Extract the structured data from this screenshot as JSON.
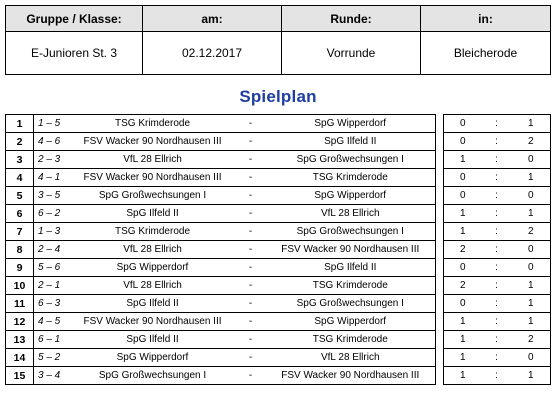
{
  "header": {
    "labels": {
      "group": "Gruppe / Klasse:",
      "date": "am:",
      "round": "Runde:",
      "place": "in:"
    },
    "values": {
      "group": "E-Junioren St. 3",
      "date": "02.12.2017",
      "round": "Vorrunde",
      "place": "Bleicherode"
    }
  },
  "title": "Spielplan",
  "separator": "-",
  "score_separator": ":",
  "matches": [
    {
      "nr": "1",
      "pair": "1 – 5",
      "home": "TSG Krimderode",
      "away": "SpG Wipperdorf",
      "score_home": "0",
      "score_away": "1"
    },
    {
      "nr": "2",
      "pair": "4 – 6",
      "home": "FSV Wacker 90 Nordhausen III",
      "away": "SpG Ilfeld II",
      "score_home": "0",
      "score_away": "2"
    },
    {
      "nr": "3",
      "pair": "2 – 3",
      "home": "VfL 28 Ellrich",
      "away": "SpG Großwechsungen I",
      "score_home": "1",
      "score_away": "0"
    },
    {
      "nr": "4",
      "pair": "4 – 1",
      "home": "FSV Wacker 90 Nordhausen III",
      "away": "TSG Krimderode",
      "score_home": "0",
      "score_away": "1"
    },
    {
      "nr": "5",
      "pair": "3 – 5",
      "home": "SpG Großwechsungen I",
      "away": "SpG Wipperdorf",
      "score_home": "0",
      "score_away": "0"
    },
    {
      "nr": "6",
      "pair": "6 – 2",
      "home": "SpG Ilfeld II",
      "away": "VfL 28 Ellrich",
      "score_home": "1",
      "score_away": "1"
    },
    {
      "nr": "7",
      "pair": "1 – 3",
      "home": "TSG Krimderode",
      "away": "SpG Großwechsungen I",
      "score_home": "1",
      "score_away": "2"
    },
    {
      "nr": "8",
      "pair": "2 – 4",
      "home": "VfL 28 Ellrich",
      "away": "FSV Wacker 90 Nordhausen III",
      "score_home": "2",
      "score_away": "0"
    },
    {
      "nr": "9",
      "pair": "5 – 6",
      "home": "SpG Wipperdorf",
      "away": "SpG Ilfeld II",
      "score_home": "0",
      "score_away": "0"
    },
    {
      "nr": "10",
      "pair": "2 – 1",
      "home": "VfL 28 Ellrich",
      "away": "TSG Krimderode",
      "score_home": "2",
      "score_away": "1"
    },
    {
      "nr": "11",
      "pair": "6 – 3",
      "home": "SpG Ilfeld II",
      "away": "SpG Großwechsungen I",
      "score_home": "0",
      "score_away": "1"
    },
    {
      "nr": "12",
      "pair": "4 – 5",
      "home": "FSV Wacker 90 Nordhausen III",
      "away": "SpG Wipperdorf",
      "score_home": "1",
      "score_away": "1"
    },
    {
      "nr": "13",
      "pair": "6 – 1",
      "home": "SpG Ilfeld II",
      "away": "TSG Krimderode",
      "score_home": "1",
      "score_away": "2"
    },
    {
      "nr": "14",
      "pair": "5 – 2",
      "home": "SpG Wipperdorf",
      "away": "VfL 28 Ellrich",
      "score_home": "1",
      "score_away": "0"
    },
    {
      "nr": "15",
      "pair": "3 – 4",
      "home": "SpG Großwechsungen I",
      "away": "FSV Wacker 90 Nordhausen III",
      "score_home": "1",
      "score_away": "1"
    }
  ]
}
